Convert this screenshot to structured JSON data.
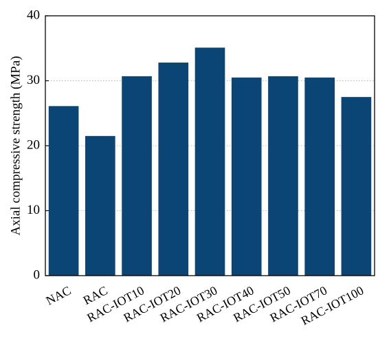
{
  "chart_data": {
    "type": "bar",
    "y_label": "Axial compressive strength (MPa)",
    "categories": [
      "NAC",
      "RAC",
      "RAC-IOT10",
      "RAC-IOT20",
      "RAC-IOT30",
      "RAC-IOT40",
      "RAC-IOT50",
      "RAC-IOT70",
      "RAC-IOT100"
    ],
    "values": [
      26.1,
      21.5,
      30.7,
      32.8,
      35.1,
      30.5,
      30.7,
      30.5,
      27.5
    ],
    "color": "#0a4576",
    "ylim": [
      0,
      40
    ],
    "yticks": [
      0,
      10,
      20,
      30,
      40
    ],
    "grid": true
  }
}
